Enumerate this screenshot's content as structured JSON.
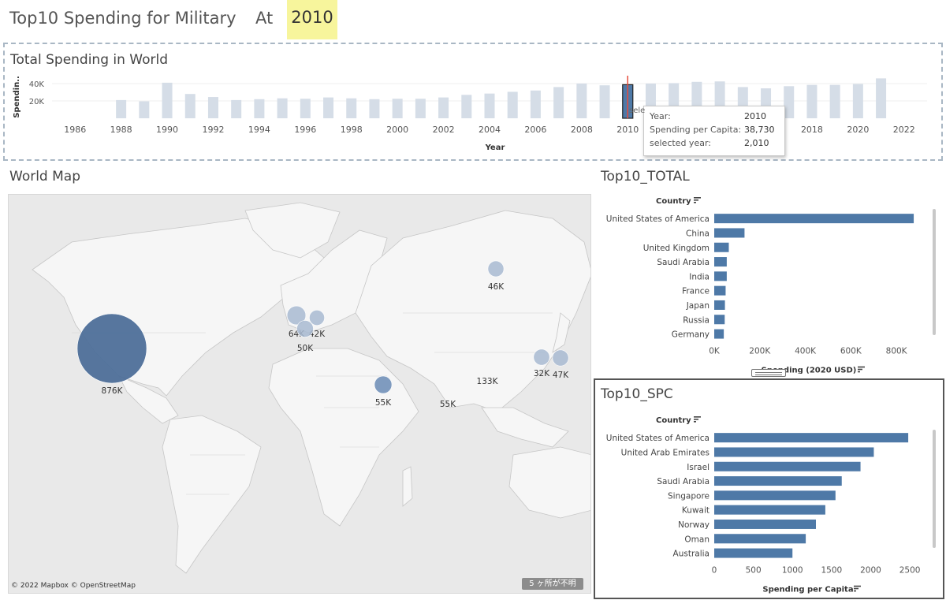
{
  "header": {
    "title": "Top10 Spending for Military",
    "at": "At",
    "year": "2010"
  },
  "total_panel": {
    "title": "Total Spending in World",
    "tooltip": {
      "rows": [
        {
          "label": "Year:",
          "value": "2010"
        },
        {
          "label": "Spending per Capita:",
          "value": "38,730"
        },
        {
          "label": "selected year:",
          "value": "2,010"
        }
      ],
      "partial_hidden_text": "sele"
    }
  },
  "map": {
    "title": "World Map",
    "credit": "© 2022 Mapbox © OpenStreetMap",
    "unknown_badge": "5 ヶ所が不明",
    "bubble_labels": [
      "876K",
      "64K",
      "42K",
      "50K",
      "55K",
      "55K",
      "133K",
      "46K",
      "32K",
      "47K"
    ]
  },
  "top10_total": {
    "title": "Top10_TOTAL",
    "category_header": "Country",
    "axis_title": "Spending (2020 USD)"
  },
  "top10_spc": {
    "title": "Top10_SPC",
    "category_header": "Country",
    "axis_title": "Spending per Capita"
  },
  "colors": {
    "bar": "#4e79a7",
    "light_bar": "#d5dde7",
    "highlight": "#f7f59c",
    "selected_line": "#e74c3c"
  },
  "chart_data": [
    {
      "type": "bar",
      "title": "Total Spending in World",
      "xlabel": "Year",
      "ylabel": "Spendin..",
      "x_ticks": [
        1986,
        1988,
        1990,
        1992,
        1994,
        1996,
        1998,
        2000,
        2002,
        2004,
        2006,
        2008,
        2010,
        2012,
        2014,
        2016,
        2018,
        2020,
        2022
      ],
      "y_ticks": [
        "20K",
        "40K"
      ],
      "ylim": [
        0,
        50000
      ],
      "xlim": [
        1985,
        2023
      ],
      "selected": 2010,
      "categories": [
        1988,
        1989,
        1990,
        1991,
        1992,
        1993,
        1994,
        1995,
        1996,
        1997,
        1998,
        1999,
        2000,
        2001,
        2002,
        2003,
        2004,
        2005,
        2006,
        2007,
        2008,
        2009,
        2010,
        2011,
        2012,
        2013,
        2014,
        2015,
        2016,
        2017,
        2018,
        2019,
        2020,
        2021
      ],
      "values": [
        21000,
        19500,
        41000,
        28000,
        24500,
        21000,
        22000,
        23000,
        22500,
        24000,
        23000,
        22000,
        22500,
        22500,
        24000,
        27000,
        28500,
        30500,
        32000,
        36000,
        40000,
        38000,
        38730,
        40000,
        40500,
        42000,
        42500,
        36000,
        34500,
        37000,
        38500,
        38500,
        39500,
        46000
      ]
    },
    {
      "type": "bar",
      "title": "Top10_TOTAL",
      "xlabel": "Spending (2020 USD)",
      "ylabel": "Country",
      "x_ticks": [
        0,
        200000,
        400000,
        600000,
        800000
      ],
      "x_tick_labels": [
        "0K",
        "200K",
        "400K",
        "600K",
        "800K"
      ],
      "xlim": [
        0,
        900000
      ],
      "categories": [
        "United States of America",
        "China",
        "United Kingdom",
        "Saudi Arabia",
        "India",
        "France",
        "Japan",
        "Russia",
        "Germany"
      ],
      "values": [
        876000,
        133000,
        64000,
        55000,
        55000,
        50000,
        47000,
        46000,
        42000
      ]
    },
    {
      "type": "bar",
      "title": "Top10_SPC",
      "xlabel": "Spending per Capita",
      "ylabel": "Country",
      "x_ticks": [
        0,
        500,
        1000,
        1500,
        2000,
        2500
      ],
      "xlim": [
        0,
        2600
      ],
      "categories": [
        "United States of America",
        "United Arab Emirates",
        "Israel",
        "Saudi Arabia",
        "Singapore",
        "Kuwait",
        "Norway",
        "Oman",
        "Australia"
      ],
      "values": [
        2480,
        2040,
        1870,
        1630,
        1550,
        1420,
        1300,
        1170,
        1000
      ]
    }
  ]
}
